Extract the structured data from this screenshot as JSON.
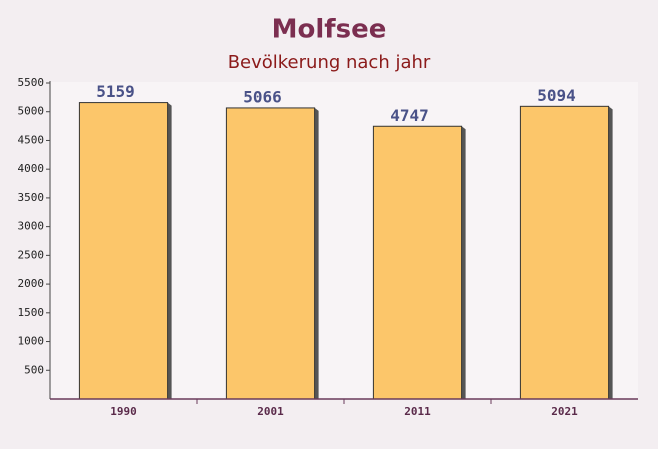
{
  "chart_data": {
    "type": "bar",
    "title": "Molfsee",
    "subtitle": "Bevölkerung nach jahr",
    "categories": [
      "1990",
      "2001",
      "2011",
      "2021"
    ],
    "values": [
      5159,
      5066,
      4747,
      5094
    ],
    "color": "#fcc66a",
    "ylim": [
      0,
      5500
    ],
    "yticks": [
      500,
      1000,
      1500,
      2000,
      2500,
      3000,
      3500,
      4000,
      4500,
      5000,
      5500
    ],
    "grid": false
  }
}
